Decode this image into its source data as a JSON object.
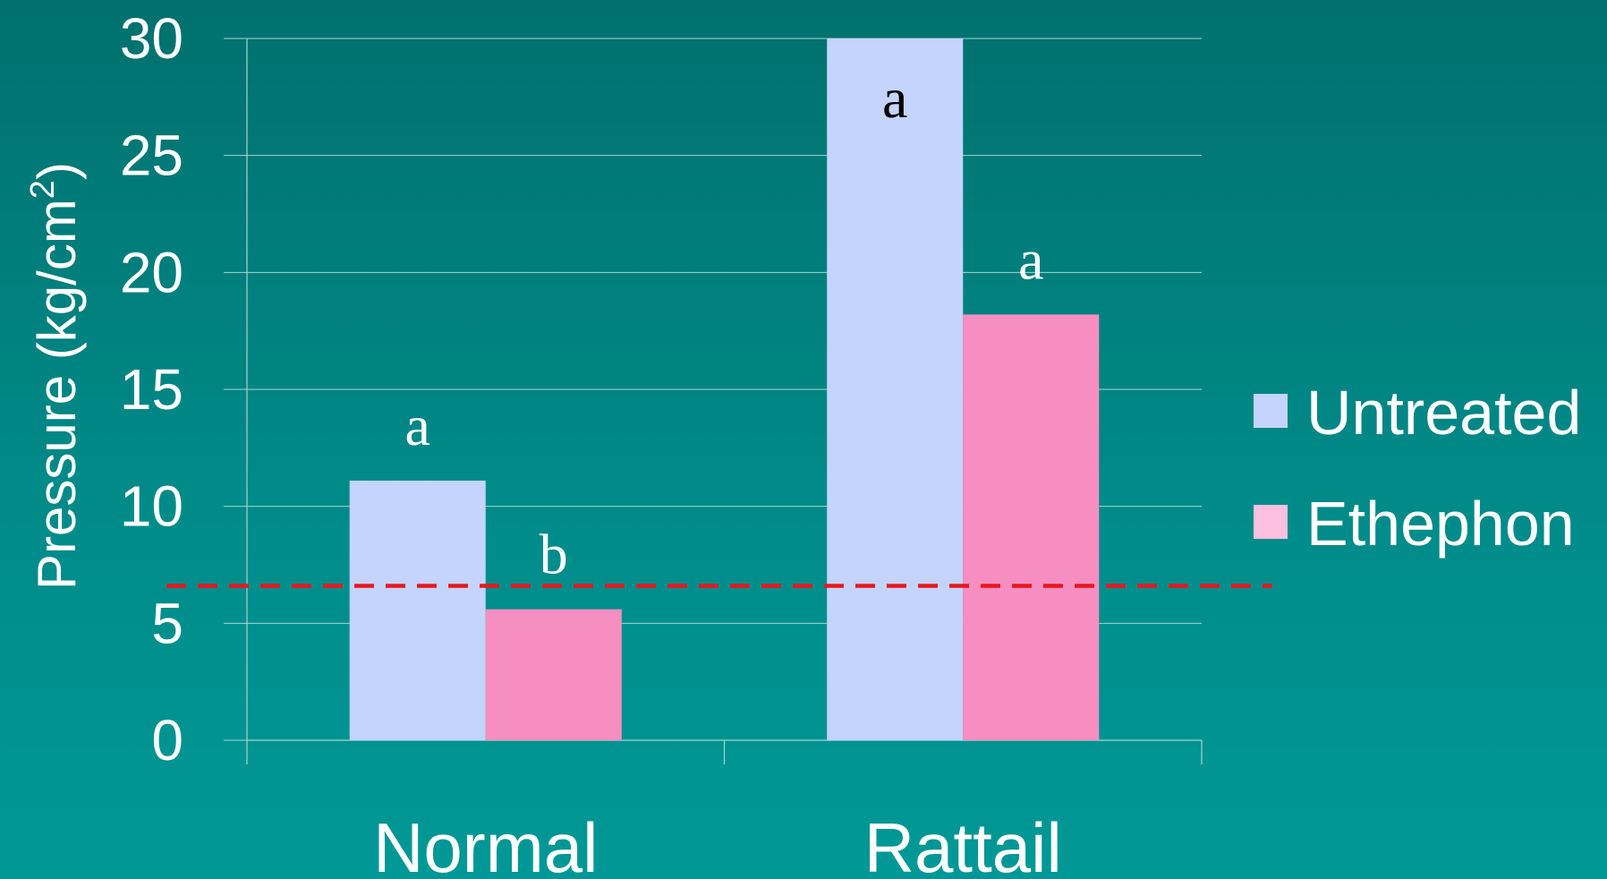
{
  "chart_data": {
    "type": "bar",
    "categories": [
      "Normal",
      "Rattail"
    ],
    "series": [
      {
        "name": "Untreated",
        "values": [
          11.1,
          30
        ],
        "labels": [
          "a",
          "a"
        ],
        "color": "#c4d4fc"
      },
      {
        "name": "Ethephon",
        "values": [
          5.6,
          18.2
        ],
        "labels": [
          "b",
          "a"
        ],
        "color": "#f78ec2"
      }
    ],
    "legend_colors": [
      "#c4d4fc",
      "#fbbfe0"
    ],
    "label_colors": [
      "#ffffff",
      "#ffffff",
      "#000000",
      "#ffffff"
    ],
    "ylabel": "Pressure (kg/cm",
    "ylabel_sup": "2",
    "ylabel_close": ")",
    "ylim": [
      0,
      30
    ],
    "yticks": [
      0,
      5,
      10,
      15,
      20,
      25,
      30
    ],
    "reference_line": {
      "value": 6.6,
      "color": "#e8161e",
      "style": "dashed"
    },
    "grid": true,
    "legend_position": "right"
  }
}
